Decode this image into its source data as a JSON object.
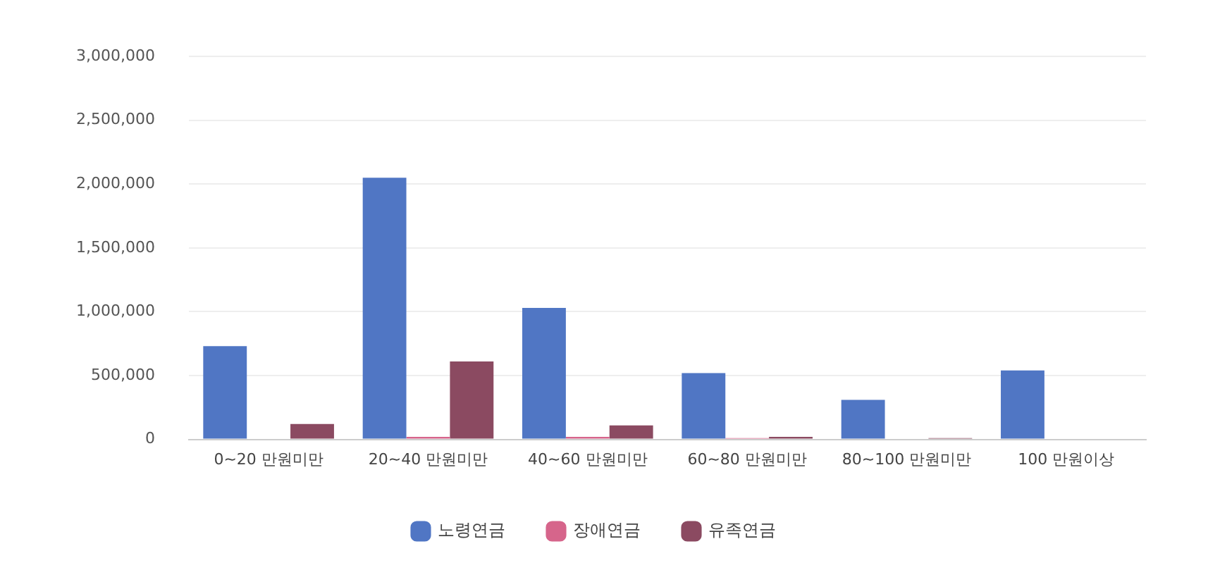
{
  "chart_data": {
    "type": "bar",
    "categories": [
      "0~20 만원미만",
      "20~40 만원미만",
      "40~60 만원미만",
      "60~80 만원미만",
      "80~100 만원미만",
      "100 만원이상"
    ],
    "series": [
      {
        "name": "노령연금",
        "color": "#5076c4",
        "values": [
          730000,
          2050000,
          1030000,
          520000,
          310000,
          540000
        ]
      },
      {
        "name": "장애연금",
        "color": "#d6658b",
        "values": [
          0,
          20000,
          20000,
          10000,
          0,
          0
        ]
      },
      {
        "name": "유족연금",
        "color": "#8b4a61",
        "values": [
          120000,
          610000,
          110000,
          20000,
          10000,
          0
        ]
      }
    ],
    "ylim": [
      0,
      3000000
    ],
    "yticks": [
      0,
      {
        "value": 500000,
        "label": "500,000"
      },
      {
        "value": 1000000,
        "label": "1,000,000"
      },
      {
        "value": 1500000,
        "label": "1,500,000"
      },
      {
        "value": 2000000,
        "label": "2,000,000"
      },
      {
        "value": 2500000,
        "label": "2,500,000"
      },
      {
        "value": 3000000,
        "label": "3,000,000"
      }
    ],
    "grid": "y",
    "legend": "bottom"
  }
}
